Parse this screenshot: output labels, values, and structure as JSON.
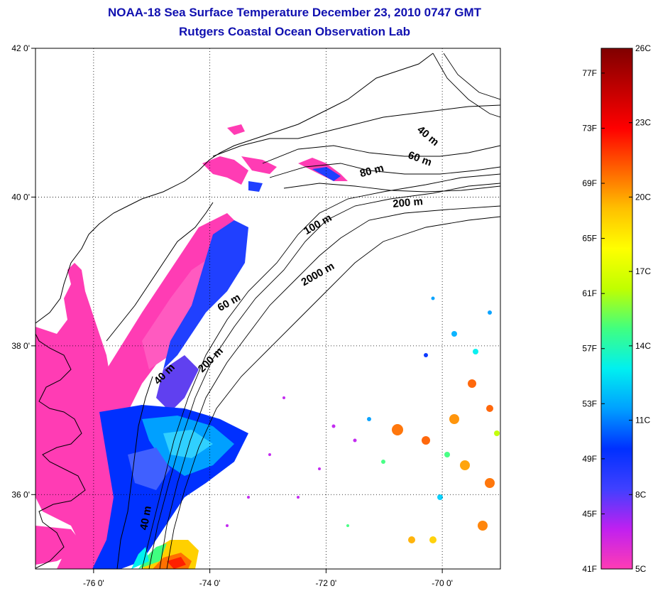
{
  "title_line1": "NOAA-18 Sea Surface Temperature December 23, 2010 0747 GMT",
  "title_line2": "Rutgers Coastal Ocean Observation Lab",
  "map": {
    "lon_range": [
      -77,
      -69
    ],
    "lat_range": [
      35,
      42
    ],
    "lon_ticks": [
      {
        "value": -76,
        "label": "-76 0'"
      },
      {
        "value": -74,
        "label": "-74 0'"
      },
      {
        "value": -72,
        "label": "-72 0'"
      },
      {
        "value": -70,
        "label": "-70 0'"
      }
    ],
    "lat_ticks": [
      {
        "value": 42,
        "label": "42 0'"
      },
      {
        "value": 40,
        "label": "40 0'"
      },
      {
        "value": 38,
        "label": "38 0'"
      },
      {
        "value": 36,
        "label": "36 0'"
      }
    ],
    "grid": "dotted",
    "contour_labels": [
      "40 m",
      "60 m",
      "80 m",
      "200 m",
      "100 m",
      "2000 m",
      "60 m",
      "200 m",
      "40 m",
      "40 m"
    ]
  },
  "colorbar": {
    "range_c": [
      5,
      26
    ],
    "colors": [
      "#ff3cb4",
      "#c020f0",
      "#4040ff",
      "#0030ff",
      "#00a0ff",
      "#00f0f0",
      "#40ff80",
      "#c0ff00",
      "#ffff00",
      "#ffc000",
      "#ff6000",
      "#ff0000",
      "#c00000",
      "#800000"
    ],
    "fahrenheit_labels": [
      "41F",
      "45F",
      "49F",
      "53F",
      "57F",
      "61F",
      "65F",
      "69F",
      "73F",
      "77F"
    ],
    "celsius_labels": [
      "5C",
      "8C",
      "11C",
      "14C",
      "17C",
      "20C",
      "23C",
      "26C"
    ]
  }
}
